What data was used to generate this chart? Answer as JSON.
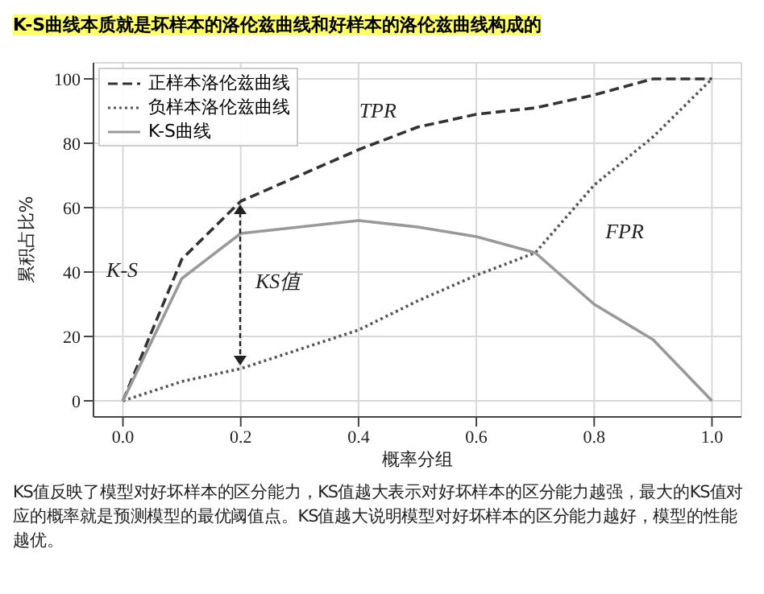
{
  "chart_data": {
    "type": "line",
    "title": "K-S曲线本质就是坏样本的洛伦兹曲线和好样本的洛伦兹曲线构成的",
    "xlabel": "概率分组",
    "ylabel": "累积占比%",
    "x": [
      0,
      0.1,
      0.2,
      0.3,
      0.4,
      0.5,
      0.6,
      0.7,
      0.8,
      0.9,
      1.0
    ],
    "series": [
      {
        "name": "正样本洛伦兹曲线",
        "color": "#333333",
        "line_style": "dashed",
        "values": [
          0,
          44,
          62,
          70,
          78,
          85,
          89,
          91,
          95,
          100,
          100
        ]
      },
      {
        "name": "负样本洛伦兹曲线",
        "color": "#555555",
        "line_style": "dotted",
        "values": [
          0,
          6,
          10,
          16,
          22,
          31,
          39,
          46,
          67,
          82,
          100
        ]
      },
      {
        "name": "K-S曲线",
        "color": "#999999",
        "line_style": "solid",
        "values": [
          0,
          38,
          52,
          54,
          56,
          54,
          51,
          46,
          30,
          19,
          0
        ]
      }
    ],
    "xlim": [
      -0.05,
      1.05
    ],
    "xticks": [
      {
        "value": 0,
        "label": "0.0"
      },
      0.2,
      0.4,
      0.6,
      0.8,
      {
        "value": 1,
        "label": "1.0"
      }
    ],
    "ylim": [
      -5,
      105
    ],
    "yticks": [
      0,
      20,
      40,
      60,
      80,
      100
    ],
    "grid": true,
    "legend": "top left",
    "marker": "none",
    "annotations": [
      "TPR",
      "FPR",
      "K-S",
      "KS值",
      "KS值反映了模型对好坏样本的区分能力，KS值越大表示对好坏样本的区分能力越强，最大的KS值对应的概率就是预测模型的最优阈值点。KS值越大说明模型对好坏样本的区分能力越好，模型的性能越优。"
    ]
  }
}
